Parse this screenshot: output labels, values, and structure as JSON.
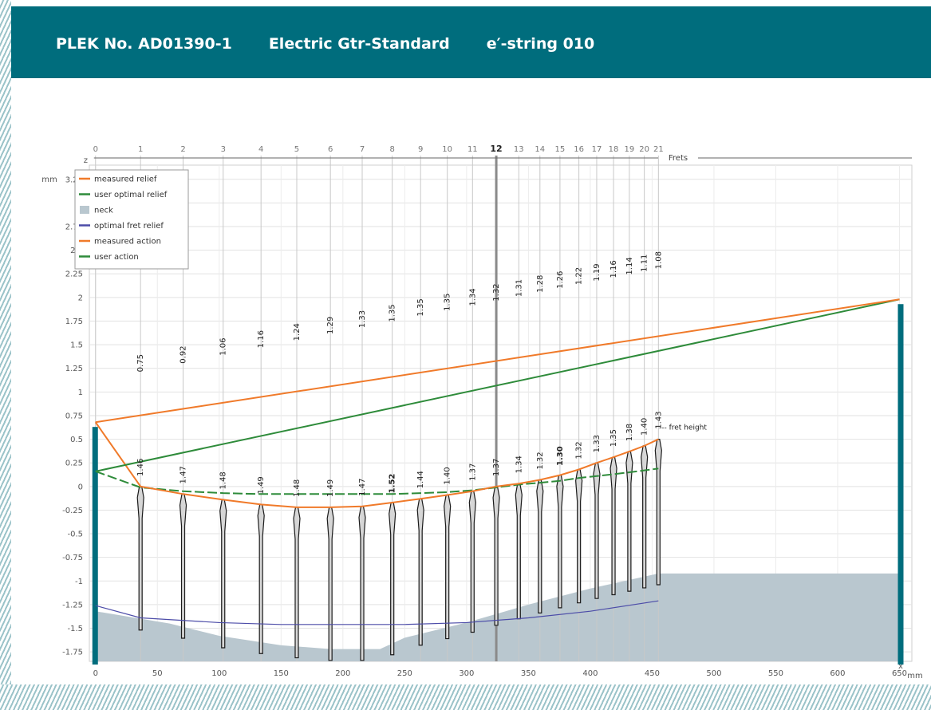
{
  "header": {
    "plek_no": "PLEK No. AD01390-1",
    "instrument": "Electric Gtr-Standard",
    "string": "e′-string 010"
  },
  "chart_data": {
    "type": "line",
    "x_unit": "mm",
    "y_unit": "mm",
    "x_axis_label": "x",
    "y_axis_label": "z",
    "frets_label": "Frets",
    "fret_height_label": "--- fret height",
    "xlim": [
      -5,
      660
    ],
    "ylim": [
      -1.85,
      3.4
    ],
    "x_ticks": [
      0,
      50,
      100,
      150,
      200,
      250,
      300,
      350,
      400,
      450,
      500,
      550,
      600,
      650
    ],
    "y_ticks": [
      "-1.75",
      "-1.5",
      "-1.25",
      "-1",
      "-0.75",
      "-0.5",
      "-0.25",
      "0",
      "0.25",
      "0.5",
      "0.75",
      "1",
      "1.25",
      "1.5",
      "1.75",
      "2",
      "2.25",
      "2.5",
      "2.75",
      "3",
      "3.25"
    ],
    "grid": true,
    "legend_position": "top-left",
    "legend": [
      {
        "label": "measured relief",
        "color": "#f07a2a",
        "kind": "line"
      },
      {
        "label": "user optimal relief",
        "color": "#2e8b3a",
        "kind": "line"
      },
      {
        "label": "neck",
        "color": "#b9c7cf",
        "kind": "box"
      },
      {
        "label": "optimal fret relief",
        "color": "#4c4ca8",
        "kind": "line"
      },
      {
        "label": "measured action",
        "color": "#f07a2a",
        "kind": "line"
      },
      {
        "label": "user action",
        "color": "#2e8b3a",
        "kind": "line"
      }
    ],
    "frets": {
      "numbers": [
        0,
        1,
        2,
        3,
        4,
        5,
        6,
        7,
        8,
        9,
        10,
        11,
        12,
        13,
        14,
        15,
        16,
        17,
        18,
        19,
        20,
        21
      ],
      "x": [
        0,
        36.4,
        70.8,
        103.2,
        133.8,
        162.7,
        189.9,
        215.6,
        239.9,
        262.8,
        284.4,
        304.8,
        324.0,
        342.2,
        359.3,
        375.5,
        390.8,
        405.2,
        418.8,
        431.6,
        443.7,
        455.1
      ],
      "action_labels": [
        "",
        "0.75",
        "0.92",
        "1.06",
        "1.16",
        "1.24",
        "1.29",
        "1.33",
        "1.35",
        "1.35",
        "1.35",
        "1.34",
        "1.32",
        "1.31",
        "1.28",
        "1.26",
        "1.22",
        "1.19",
        "1.16",
        "1.14",
        "1.11",
        "1.08"
      ],
      "height_labels": [
        "",
        "1.46",
        "1.47",
        "1.48",
        "1.49",
        "1.48",
        "1.49",
        "1.47",
        "1.52",
        "1.44",
        "1.40",
        "1.37",
        "1.37",
        "1.34",
        "1.32",
        "1.30",
        "1.32",
        "1.33",
        "1.35",
        "1.38",
        "1.40",
        "1.43"
      ],
      "top_z": [
        null,
        0,
        -0.08,
        -0.14,
        -0.19,
        -0.22,
        -0.22,
        -0.21,
        -0.17,
        -0.13,
        -0.09,
        -0.05,
        0.0,
        0.03,
        0.07,
        0.12,
        0.18,
        0.25,
        0.31,
        0.37,
        0.43,
        0.5
      ]
    },
    "measured_action": {
      "x": [
        0,
        650
      ],
      "z": [
        0.68,
        1.98
      ]
    },
    "user_action": {
      "x": [
        0,
        650
      ],
      "z": [
        0.16,
        1.98
      ]
    },
    "measured_relief": {
      "x": [
        0,
        36.4,
        70.8,
        103.2,
        133.8,
        162.7,
        189.9,
        215.6,
        239.9,
        262.8,
        284.4,
        304.8,
        324.0,
        342.2,
        359.3,
        375.5,
        390.8,
        405.2,
        418.8,
        431.6,
        443.7,
        455.1
      ],
      "z": [
        0.68,
        0,
        -0.08,
        -0.14,
        -0.19,
        -0.22,
        -0.22,
        -0.21,
        -0.17,
        -0.13,
        -0.09,
        -0.05,
        0.0,
        0.03,
        0.07,
        0.12,
        0.18,
        0.25,
        0.31,
        0.37,
        0.43,
        0.5
      ]
    },
    "user_optimal_relief": {
      "x": [
        0,
        36.4,
        70.8,
        103.2,
        133.8,
        162.7,
        189.9,
        215.6,
        239.9,
        262.8,
        284.4,
        304.8,
        324.0,
        342.2,
        359.3,
        375.5,
        390.8,
        405.2,
        418.8,
        431.6,
        443.7,
        455.1
      ],
      "z": [
        0.16,
        -0.01,
        -0.05,
        -0.07,
        -0.08,
        -0.08,
        -0.08,
        -0.08,
        -0.08,
        -0.07,
        -0.06,
        -0.04,
        -0.01,
        0.02,
        0.04,
        0.06,
        0.09,
        0.11,
        0.13,
        0.15,
        0.17,
        0.19
      ]
    },
    "optimal_fret_relief": {
      "x": [
        0,
        36.4,
        100,
        150,
        200,
        250,
        300,
        350,
        400,
        455.1
      ],
      "z": [
        -1.26,
        -1.39,
        -1.44,
        -1.46,
        -1.46,
        -1.46,
        -1.44,
        -1.39,
        -1.32,
        -1.21
      ]
    },
    "neck": {
      "x": [
        0,
        60,
        100,
        150,
        190,
        230,
        250,
        300,
        350,
        400,
        455.1,
        650
      ],
      "z": [
        -1.32,
        -1.45,
        -1.58,
        -1.68,
        -1.72,
        -1.72,
        -1.6,
        -1.44,
        -1.25,
        -1.08,
        -0.92,
        -0.92
      ]
    },
    "nut": {
      "x": 0,
      "z_top": 0.63
    },
    "bridge": {
      "x": 650,
      "z_top": 1.98
    }
  }
}
